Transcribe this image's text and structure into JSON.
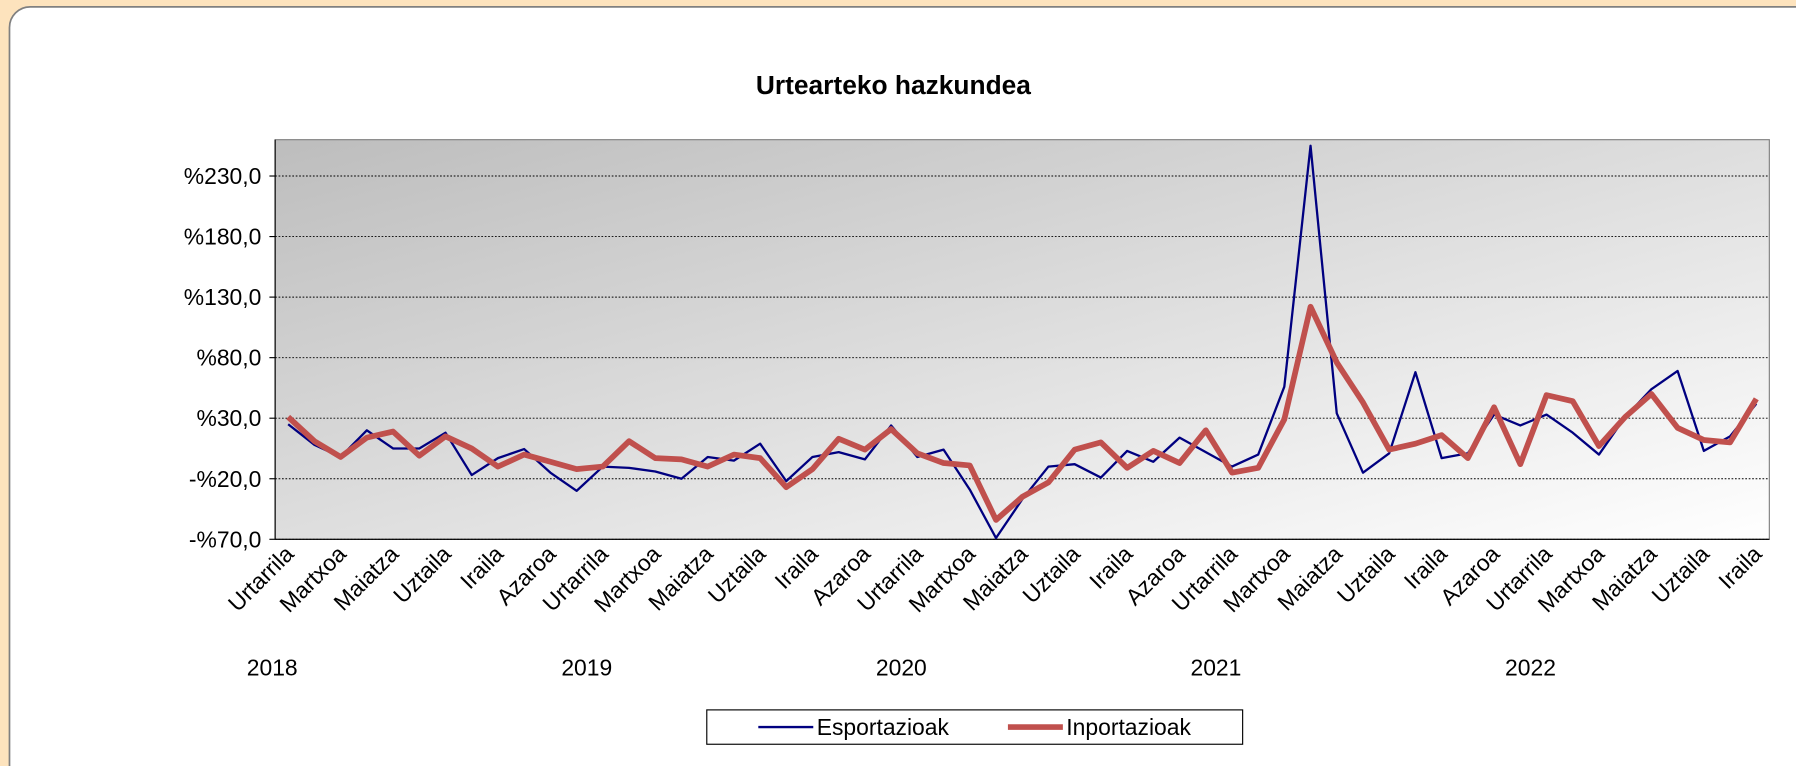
{
  "chart_data": {
    "type": "line",
    "title": "Urtearteko hazkundea",
    "categories": [
      "Urtarrila",
      null,
      "Martxoa",
      null,
      "Maiatza",
      null,
      "Uztaila",
      null,
      "Iraila",
      null,
      "Azaroa",
      null,
      "Urtarrila",
      null,
      "Martxoa",
      null,
      "Maiatza",
      null,
      "Uztaila",
      null,
      "Iraila",
      null,
      "Azaroa",
      null,
      "Urtarrila",
      null,
      "Martxoa",
      null,
      "Maiatza",
      null,
      "Uztaila",
      null,
      "Iraila",
      null,
      "Azaroa",
      null,
      "Urtarrila",
      null,
      "Martxoa",
      null,
      "Maiatza",
      null,
      "Uztaila",
      null,
      "Iraila",
      null,
      "Azaroa",
      null,
      "Urtarrila",
      null,
      "Martxoa",
      null,
      "Maiatza",
      null,
      "Uztaila",
      null,
      "Iraila"
    ],
    "years": [
      "2018",
      "2019",
      "2020",
      "2021",
      "2022"
    ],
    "series": [
      {
        "name": "Esportazioak",
        "color": "#000080",
        "width": 2,
        "values": [
          25,
          8,
          -2,
          20,
          5,
          5,
          18,
          -17,
          -3,
          4.5,
          -15,
          -30,
          -10,
          -11,
          -14,
          -20,
          -2,
          -5,
          9,
          -22,
          -2,
          2,
          -4,
          24,
          -2,
          4,
          -29,
          -69,
          -37,
          -10,
          -8,
          -19,
          3,
          -6,
          14,
          2,
          -10,
          0,
          56,
          255,
          34,
          -15,
          1,
          68,
          -3,
          1,
          33,
          24,
          33,
          18,
          0,
          31,
          54,
          69,
          3,
          15,
          42
        ]
      },
      {
        "name": "Inportazioak",
        "color": "#c0504d",
        "width": 5,
        "values": [
          31,
          11,
          -2,
          14,
          19,
          -1,
          15,
          5,
          -10,
          0,
          -6,
          -12,
          -10,
          11,
          -3,
          -4,
          -10,
          0,
          -3,
          -27,
          -12,
          13,
          4,
          21,
          1,
          -7,
          -9,
          -54,
          -35,
          -23,
          4,
          10,
          -11,
          3,
          -7,
          20,
          -15,
          -11,
          29,
          122,
          76,
          43,
          4,
          9,
          16,
          -3,
          39,
          -8,
          49,
          44,
          7,
          31,
          50,
          22,
          12,
          10,
          46
        ]
      }
    ],
    "ylim": [
      -70,
      260
    ],
    "yticks": [
      {
        "value": -70,
        "label": "-%70,0"
      },
      {
        "value": -20,
        "label": "-%20,0"
      },
      {
        "value": 30,
        "label": "%30,0"
      },
      {
        "value": 80,
        "label": "%80,0"
      },
      {
        "value": 130,
        "label": "%130,0"
      },
      {
        "value": 180,
        "label": "%180,0"
      },
      {
        "value": 230,
        "label": "%230,0"
      }
    ],
    "grid": true,
    "legend": "bottom"
  }
}
